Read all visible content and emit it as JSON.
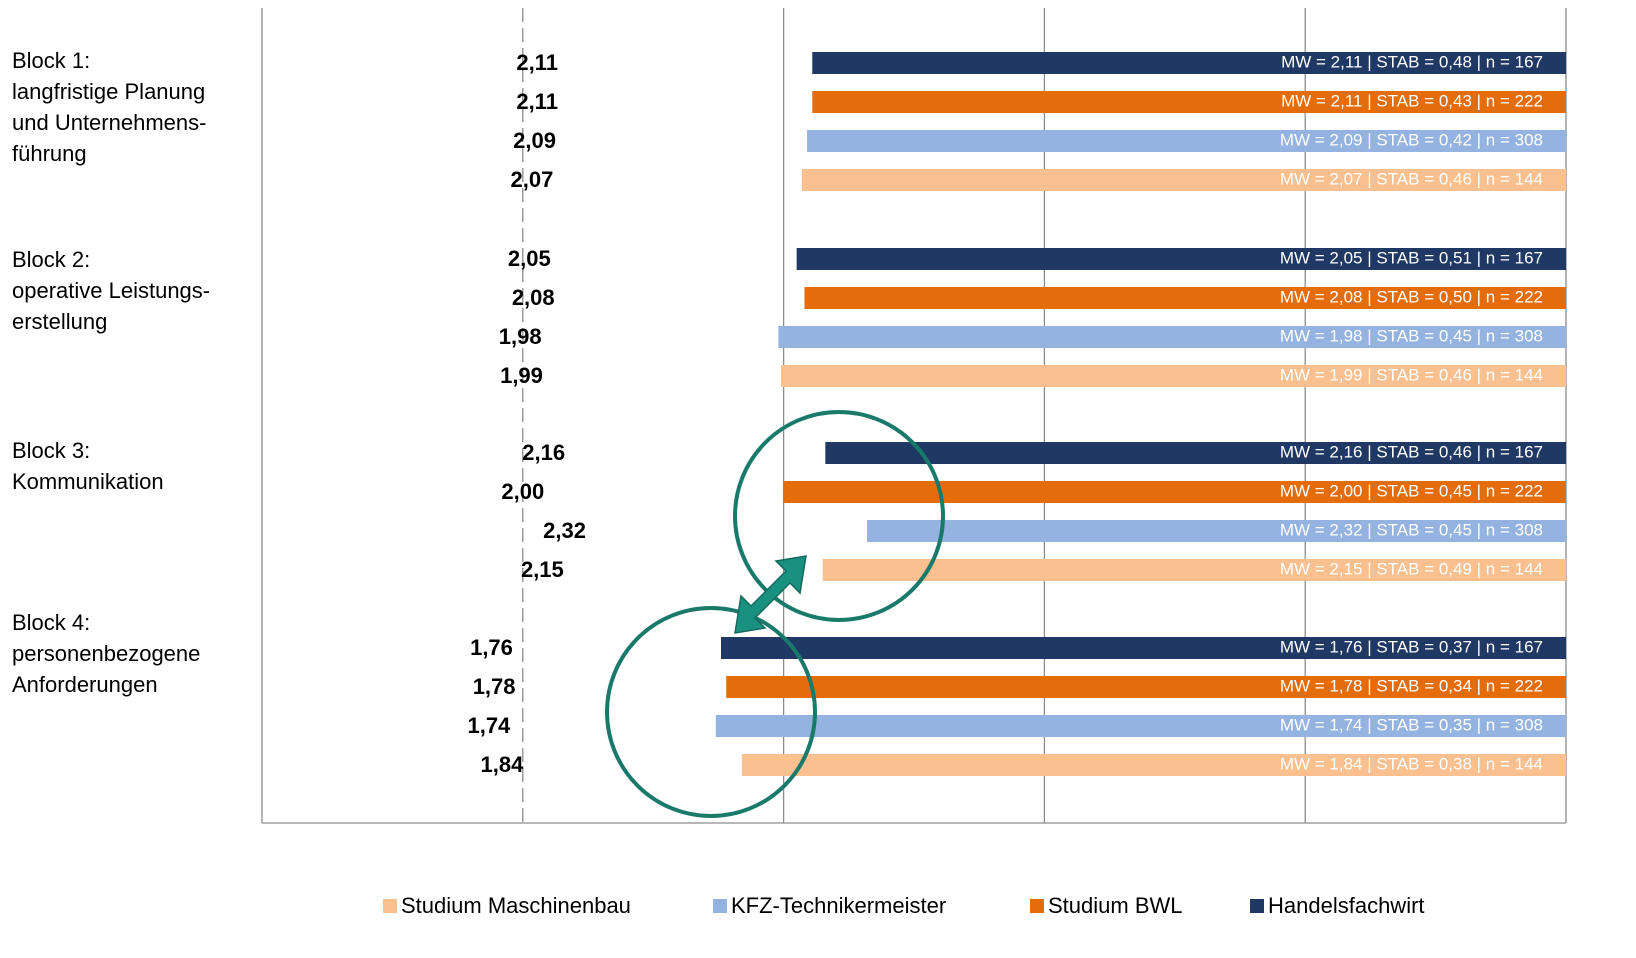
{
  "chart_data": {
    "type": "bar",
    "orientation": "horizontal",
    "categories": [
      [
        "Block 1:",
        "langfristige Planung",
        "und Unternehmens-",
        "führung"
      ],
      [
        "Block 2:",
        "operative Leistungs-",
        "erstellung"
      ],
      [
        "Block 3:",
        "Kommunikation"
      ],
      [
        "Block 4:",
        "personenbezogene",
        "Anforderungen"
      ]
    ],
    "series": [
      {
        "name": "Handelsfachwirt",
        "color": "#1f3864",
        "values": [
          2.11,
          2.05,
          2.16,
          1.76
        ],
        "value_labels": [
          "2,11",
          "2,05",
          "2,16",
          "1,76"
        ],
        "bar_labels": [
          "MW = 2,11 | STAB = 0,48 | n = 167",
          "MW = 2,05 | STAB = 0,51 | n = 167",
          "MW = 2,16 | STAB = 0,46 | n = 167",
          "MW = 1,76 | STAB = 0,37 | n = 167"
        ]
      },
      {
        "name": "Studium BWL",
        "color": "#e46c0a",
        "values": [
          2.11,
          2.08,
          2.0,
          1.78
        ],
        "value_labels": [
          "2,11",
          "2,08",
          "2,00",
          "1,78"
        ],
        "bar_labels": [
          "MW = 2,11 | STAB = 0,43 | n = 222",
          "MW = 2,08 | STAB = 0,50 | n = 222",
          "MW = 2,00 | STAB = 0,45 | n = 222",
          "MW = 1,78 | STAB = 0,34 | n = 222"
        ]
      },
      {
        "name": "KFZ-Technikermeister",
        "color": "#95b3e1",
        "values": [
          2.09,
          1.98,
          2.32,
          1.74
        ],
        "value_labels": [
          "2,09",
          "1,98",
          "2,32",
          "1,74"
        ],
        "bar_labels": [
          "MW = 2,09 | STAB = 0,42 | n = 308",
          "MW = 1,98 | STAB = 0,45 | n = 308",
          "MW = 2,32 | STAB = 0,45 | n = 308",
          "MW = 1,74 | STAB = 0,35 | n = 308"
        ]
      },
      {
        "name": "Studium Maschinenbau",
        "color": "#fac090",
        "values": [
          2.07,
          1.99,
          2.15,
          1.84
        ],
        "value_labels": [
          "2,07",
          "1,99",
          "2,15",
          "1,84"
        ],
        "bar_labels": [
          "MW = 2,07 | STAB = 0,46 | n = 144",
          "MW = 1,99 | STAB = 0,46 | n = 144",
          "MW = 2,15 | STAB = 0,49 | n = 144",
          "MW = 1,84 | STAB = 0,38 | n = 144"
        ]
      }
    ],
    "xlim": [
      0,
      5
    ],
    "xticks": [
      0,
      1,
      2,
      3,
      4,
      5
    ],
    "grid": true,
    "legend": "bottom"
  }
}
